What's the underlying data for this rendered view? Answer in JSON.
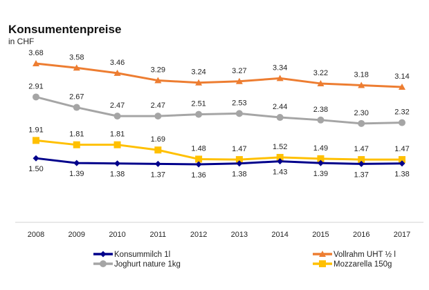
{
  "chart_data": {
    "type": "line",
    "title": "Konsumentenpreise",
    "subtitle": "in CHF",
    "xlabel": "",
    "ylabel": "",
    "x": [
      "2008",
      "2009",
      "2010",
      "2011",
      "2012",
      "2013",
      "2014",
      "2015",
      "2016",
      "2017"
    ],
    "ylim": [
      1.0,
      3.9
    ],
    "grid": false,
    "legend": "bottom",
    "series": [
      {
        "name": "Vollrahm UHT ½ l",
        "color": "#ED7D31",
        "marker": "triangle",
        "values": [
          3.68,
          3.58,
          3.46,
          3.29,
          3.24,
          3.27,
          3.34,
          3.22,
          3.18,
          3.14
        ],
        "labels": [
          "3.68",
          "3.58",
          "3.46",
          "3.29",
          "3.24",
          "3.27",
          "3.34",
          "3.22",
          "3.18",
          "3.14"
        ]
      },
      {
        "name": "Joghurt nature 1kg",
        "color": "#A5A5A5",
        "marker": "circle",
        "values": [
          2.91,
          2.67,
          2.47,
          2.47,
          2.51,
          2.53,
          2.44,
          2.38,
          2.3,
          2.32
        ],
        "labels": [
          "2.91",
          "2.67",
          "2.47",
          "2.47",
          "2.51",
          "2.53",
          "2.44",
          "2.38",
          "2.30",
          "2.32"
        ]
      },
      {
        "name": "Mozzarella 150g",
        "color": "#FFC000",
        "marker": "square",
        "values": [
          1.91,
          1.81,
          1.81,
          1.69,
          1.48,
          1.47,
          1.52,
          1.49,
          1.47,
          1.47
        ],
        "labels": [
          "1.91",
          "1.81",
          "1.81",
          "1.69",
          "1.48",
          "1.47",
          "1.52",
          "1.49",
          "1.47",
          "1.47"
        ]
      },
      {
        "name": "Konsummilch 1l",
        "color": "#00008B",
        "marker": "diamond",
        "values": [
          1.5,
          1.39,
          1.38,
          1.37,
          1.36,
          1.38,
          1.43,
          1.39,
          1.37,
          1.38
        ],
        "labels": [
          "1.50",
          "1.39",
          "1.38",
          "1.37",
          "1.36",
          "1.38",
          "1.43",
          "1.39",
          "1.37",
          "1.38"
        ]
      }
    ],
    "legend_order": [
      3,
      0,
      1,
      2
    ]
  }
}
